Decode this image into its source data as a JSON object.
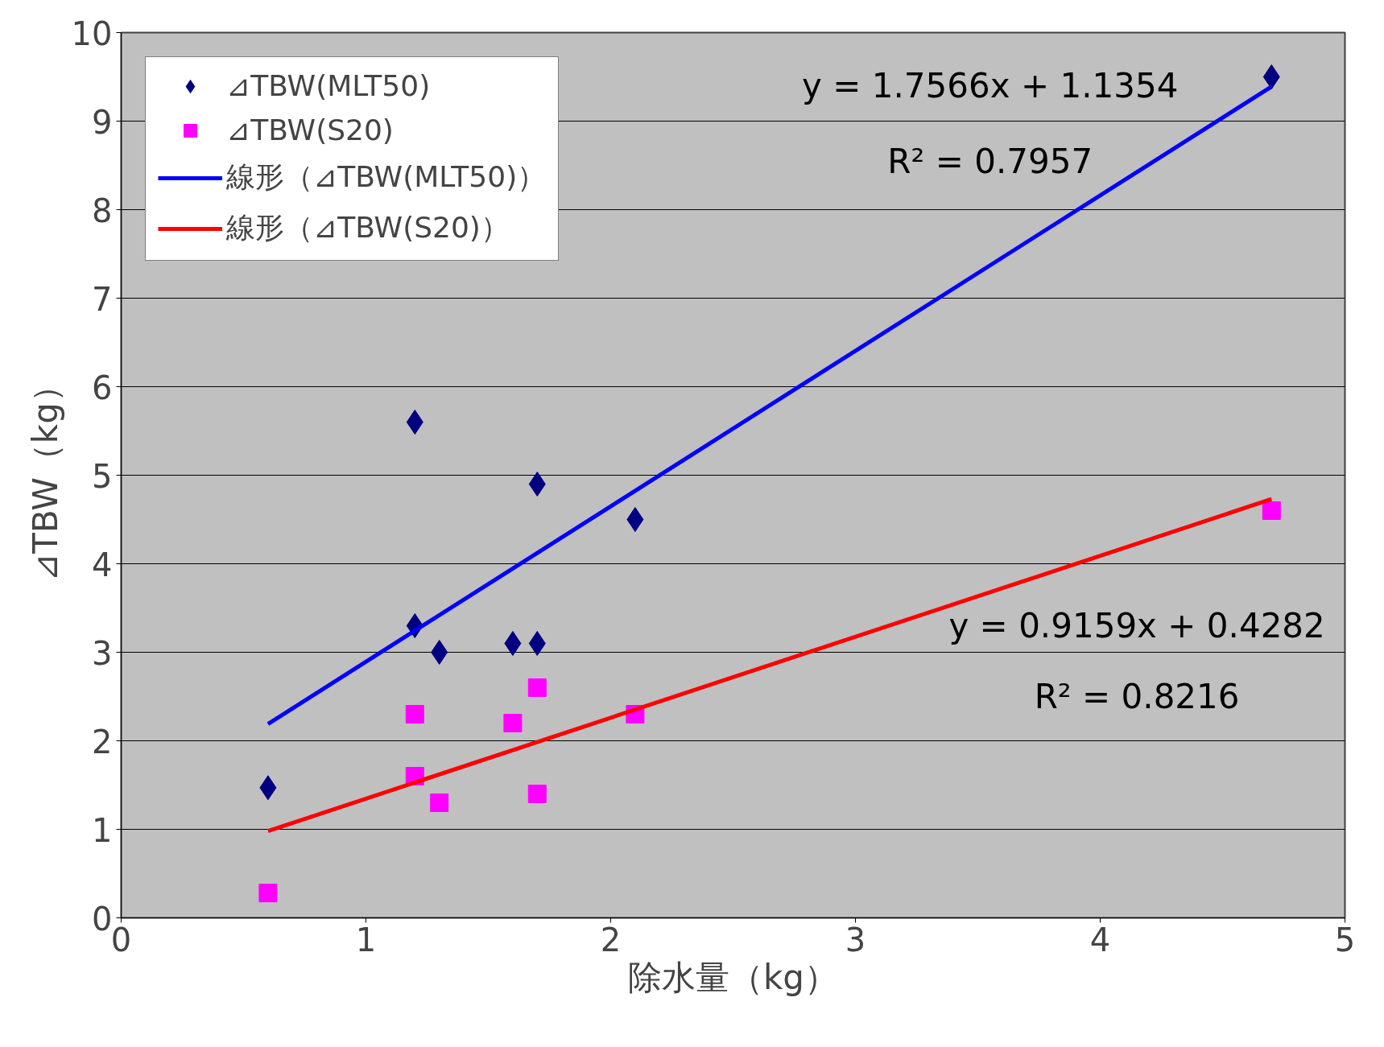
{
  "chart_data": {
    "type": "scatter",
    "xlabel": "除水量（kg）",
    "ylabel": "⊿TBW（kg）",
    "xlim": [
      0,
      5
    ],
    "xticks": [
      0,
      1,
      2,
      3,
      4,
      5
    ],
    "ylim": [
      0,
      10
    ],
    "yticks": [
      0,
      1,
      2,
      3,
      4,
      5,
      6,
      7,
      8,
      9,
      10
    ],
    "grid": "y",
    "legend": "top left",
    "series": [
      {
        "name": "⊿TBW(MLT50)",
        "marker": "diamond",
        "color": "#000080",
        "x": [
          0.6,
          1.2,
          1.2,
          1.3,
          1.6,
          1.7,
          1.7,
          2.1,
          4.7
        ],
        "values": [
          1.47,
          5.6,
          3.3,
          3.0,
          3.1,
          3.1,
          4.9,
          4.5,
          9.5
        ]
      },
      {
        "name": "⊿TBW(S20)",
        "marker": "square",
        "color": "#ff00ff",
        "x": [
          0.6,
          1.2,
          1.2,
          1.3,
          1.6,
          1.7,
          1.7,
          2.1,
          4.7
        ],
        "values": [
          0.28,
          2.3,
          1.6,
          1.3,
          2.2,
          2.6,
          1.4,
          2.3,
          4.6
        ]
      },
      {
        "name": "線形（⊿TBW(MLT50)）",
        "type": "line",
        "color": "#0000ff",
        "x": [
          0.6,
          4.7
        ],
        "values": [
          2.19,
          9.39
        ]
      },
      {
        "name": "線形（⊿TBW(S20)）",
        "type": "line",
        "color": "#ff0000",
        "x": [
          0.6,
          4.7
        ],
        "values": [
          0.98,
          4.73
        ]
      }
    ],
    "annotations": [
      "y = 1.7566x + 1.1354",
      "R² = 0.7957",
      "y = 0.9159x + 0.4282",
      "R² = 0.8216"
    ]
  }
}
